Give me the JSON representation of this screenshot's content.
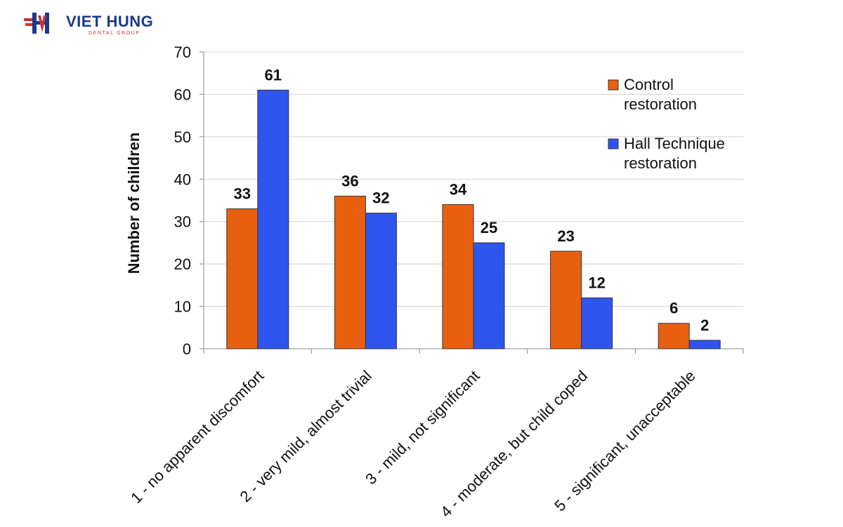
{
  "brand": {
    "name": "VIET HUNG",
    "subtitle": "DENTAL GROUP",
    "colors": {
      "blue": "#1a3a8a",
      "red": "#d32f2f"
    },
    "icon": "vh-logo-icon"
  },
  "chart_data": {
    "type": "bar",
    "title": "",
    "xlabel": "",
    "ylabel": "Number of children",
    "ylim": [
      0,
      70
    ],
    "yticks": [
      0,
      10,
      20,
      30,
      40,
      50,
      60,
      70
    ],
    "grid": true,
    "legend_position": "top-right",
    "categories": [
      "1 - no apparent discomfort",
      "2 - very mild, almost trivial",
      "3 - mild, not significant",
      "4 - moderate, but child coped",
      "5 - significant, unacceptable"
    ],
    "series": [
      {
        "name": "Control restoration",
        "legend_lines": [
          "Control",
          "restoration"
        ],
        "color": "#e8600f",
        "values": [
          33,
          36,
          34,
          23,
          6
        ]
      },
      {
        "name": "Hall Technique restoration",
        "legend_lines": [
          "Hall Technique",
          "restoration"
        ],
        "color": "#2f55ef",
        "values": [
          61,
          32,
          25,
          12,
          2
        ]
      }
    ]
  }
}
